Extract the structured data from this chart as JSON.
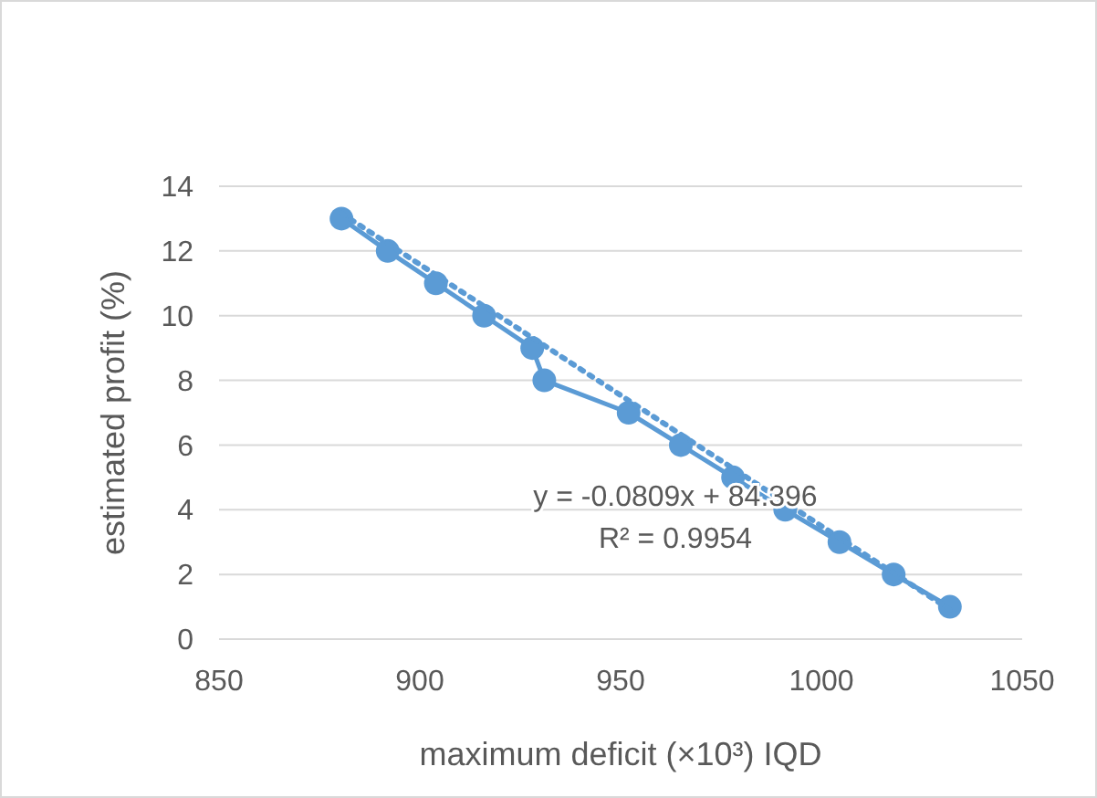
{
  "chart_data": {
    "type": "line",
    "xlabel": "maximum deficit (×10³) IQD",
    "ylabel": "estimated profit (%)",
    "xlim": [
      850,
      1050
    ],
    "xticks": [
      850,
      900,
      950,
      1000,
      1050
    ],
    "ylim": [
      0,
      14
    ],
    "yticks": [
      0,
      2,
      4,
      6,
      8,
      10,
      12,
      14
    ],
    "grid": "y",
    "series": [
      {
        "color": "#5b9bd5",
        "marker": "circle",
        "line_style": "solid",
        "x": [
          880.5,
          892,
          904,
          916,
          928,
          931,
          952,
          965,
          978,
          991,
          1004.5,
          1018,
          1032
        ],
        "values": [
          13,
          12,
          11,
          10,
          9,
          8,
          7,
          6,
          5,
          4,
          3,
          2,
          1
        ]
      },
      {
        "color": "#5b9bd5",
        "marker": "none",
        "line_style": "dotted",
        "x": [
          880.5,
          1032
        ],
        "values": [
          13.16,
          0.91
        ]
      }
    ],
    "annotations": [
      {
        "text": "y = -0.0809x + 84.396"
      },
      {
        "text": "R² = 0.9954"
      }
    ]
  }
}
